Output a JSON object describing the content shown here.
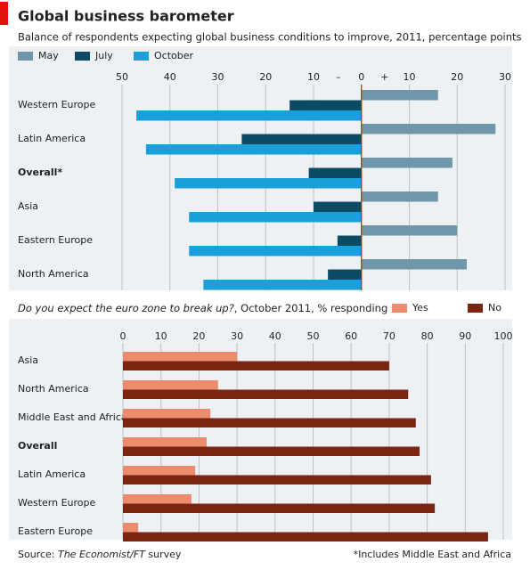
{
  "title": "Global business barometer",
  "chart_data": [
    {
      "type": "bar",
      "orientation": "horizontal",
      "subtitle": "Balance of respondents expecting global business conditions to improve, 2011, percentage points",
      "categories": [
        "Western Europe",
        "Latin America",
        "Overall*",
        "Asia",
        "Eastern Europe",
        "North America"
      ],
      "series": [
        {
          "name": "May",
          "color": "#6f97a9",
          "values": [
            16,
            28,
            19,
            16,
            20,
            22
          ]
        },
        {
          "name": "July",
          "color": "#0d4a63",
          "values": [
            -15,
            -25,
            -11,
            -10,
            -5,
            -7
          ]
        },
        {
          "name": "October",
          "color": "#19a0d8",
          "values": [
            -47,
            -45,
            -39,
            -36,
            -36,
            -33
          ]
        }
      ],
      "xlim": [
        -50,
        30
      ],
      "xticks": [
        {
          "value": -50,
          "label": "50"
        },
        {
          "value": -40,
          "label": "40"
        },
        {
          "value": -30,
          "label": "30"
        },
        {
          "value": -20,
          "label": "20"
        },
        {
          "value": -10,
          "label": "10"
        },
        0,
        10,
        20,
        30
      ],
      "annotations": [
        "–",
        "+"
      ],
      "zero_line_color": "#e3120b",
      "grid": true
    },
    {
      "type": "bar",
      "orientation": "horizontal",
      "subtitle_italic": "Do you expect the euro zone to break up?",
      "subtitle": ", October 2011, % responding",
      "categories": [
        "Asia",
        "North America",
        "Middle East and Africa",
        "Overall",
        "Latin America",
        "Western Europe",
        "Eastern Europe"
      ],
      "series": [
        {
          "name": "Yes",
          "color": "#ee8b6f",
          "values": [
            30,
            25,
            23,
            22,
            19,
            18,
            4
          ]
        },
        {
          "name": "No",
          "color": "#7b2511",
          "values": [
            70,
            75,
            77,
            78,
            81,
            82,
            96
          ]
        }
      ],
      "xlim": [
        0,
        100
      ],
      "xticks": [
        0,
        10,
        20,
        30,
        40,
        50,
        60,
        70,
        80,
        90,
        100
      ],
      "grid": true
    }
  ],
  "source_prefix": "Source: ",
  "source_italic": "The Economist/FT",
  "source_suffix": " survey",
  "note": "*Includes Middle East and Africa"
}
